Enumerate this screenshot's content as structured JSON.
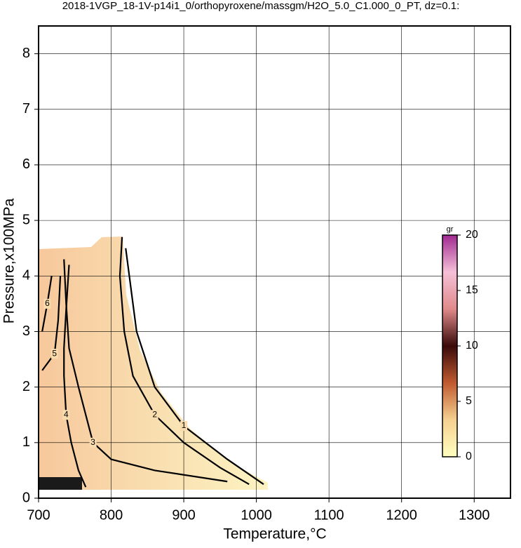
{
  "chart_data": {
    "type": "contour",
    "title": "2018-1VGP_18-1V-p14i1_0/orthopyroxene/massgm/H2O_5.0_C1.000_0_PT, dz=0.1:",
    "x_label": "Temperature,°C",
    "y_label": "Pressure,x100MPa",
    "xlim": [
      700,
      1350
    ],
    "ylim": [
      0,
      8.5
    ],
    "xticks": [
      700,
      800,
      900,
      1000,
      1100,
      1200,
      1300
    ],
    "yticks": [
      0,
      1,
      2,
      3,
      4,
      5,
      6,
      7,
      8
    ],
    "grid": true,
    "contours": [
      {
        "level": 1,
        "x": [
          820,
          835,
          860,
          900,
          960,
          1010
        ],
        "y": [
          4.5,
          3.0,
          2.0,
          1.3,
          0.7,
          0.25
        ]
      },
      {
        "level": 2,
        "x": [
          815,
          812,
          818,
          830,
          860,
          900,
          950,
          990
        ],
        "y": [
          4.7,
          4.0,
          3.0,
          2.2,
          1.5,
          1.0,
          0.55,
          0.25
        ]
      },
      {
        "level": 3,
        "x": [
          735,
          738,
          742,
          755,
          775,
          800,
          860,
          960
        ],
        "y": [
          4.3,
          3.5,
          2.7,
          2.0,
          1.0,
          0.7,
          0.5,
          0.3
        ]
      },
      {
        "level": 4,
        "x": [
          742,
          738,
          735,
          735,
          738,
          745,
          755,
          765
        ],
        "y": [
          4.2,
          3.4,
          2.7,
          2.2,
          1.5,
          1.0,
          0.5,
          0.2
        ]
      },
      {
        "level": 5,
        "x": [
          730,
          727,
          722,
          705
        ],
        "y": [
          4.0,
          3.2,
          2.6,
          2.3
        ]
      },
      {
        "level": 6,
        "x": [
          718,
          712,
          705
        ],
        "y": [
          4.0,
          3.5,
          3.0
        ]
      }
    ],
    "colorbar": {
      "label": "gr",
      "lim": [
        0,
        20
      ],
      "ticks": [
        0,
        5,
        10,
        15,
        20
      ],
      "colors": [
        "#ffffc0",
        "#f5d090",
        "#c05a30",
        "#3a0a0a",
        "#e08a8a",
        "#f5c0d8",
        "#a02890"
      ]
    }
  }
}
